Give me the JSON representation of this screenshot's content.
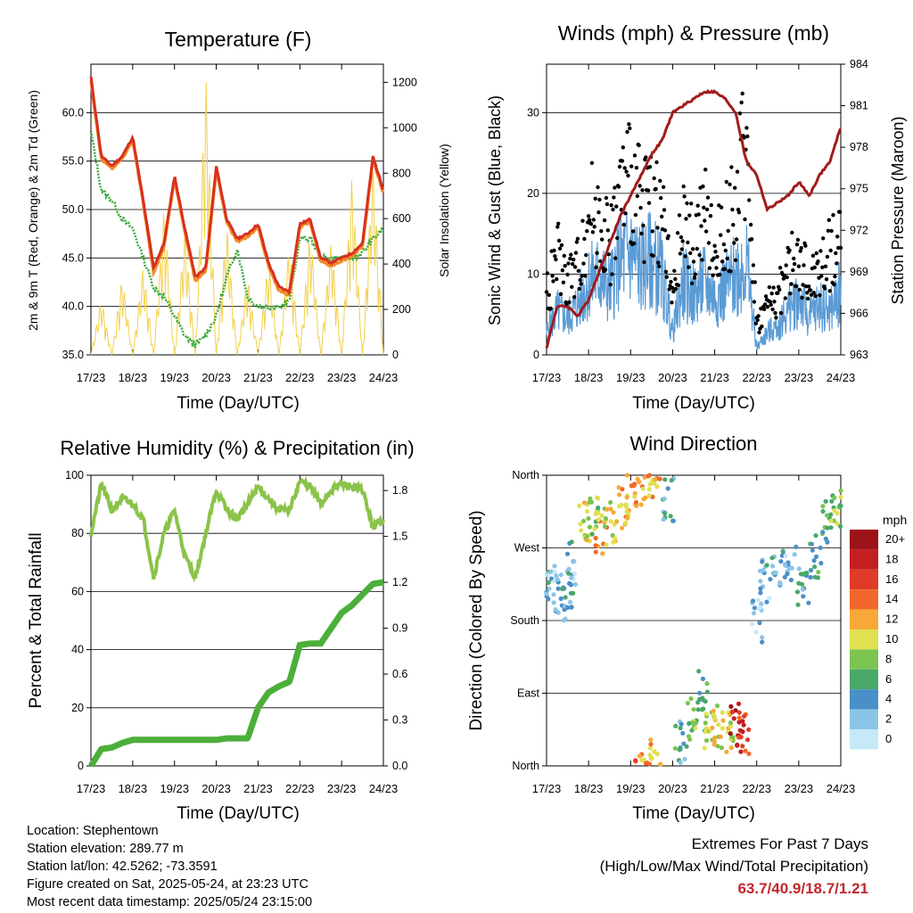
{
  "colors": {
    "t2m": "#d7301f",
    "t9m": "#f28c28",
    "td": "#3aa83a",
    "solar": "#f2d04c",
    "wind": "#5b9bd5",
    "gust": "#000000",
    "pressure": "#a01c1c",
    "rh": "#8bc34a",
    "precip": "#4caf3a",
    "extremes": "#c0282d"
  },
  "x_ticks": [
    "17/23",
    "18/23",
    "19/23",
    "20/23",
    "21/23",
    "22/23",
    "23/23",
    "24/23"
  ],
  "panels": {
    "temperature": {
      "title": "Temperature (F)",
      "xlabel": "Time (Day/UTC)",
      "ylabel_left": "2m & 9m T (Red, Orange) & 2m Td (Green)",
      "ylabel_right": "Solar Insolation (Yellow)",
      "left_ticks": [
        "35.0",
        "40.0",
        "45.0",
        "50.0",
        "55.0",
        "60.0"
      ],
      "right_ticks": [
        "0",
        "200",
        "400",
        "600",
        "800",
        "1000",
        "1200"
      ]
    },
    "winds": {
      "title": "Winds (mph) & Pressure (mb)",
      "xlabel": "Time (Day/UTC)",
      "ylabel_left": "Sonic Wind & Gust (Blue, Black)",
      "ylabel_right": "Station Pressure (Maroon)",
      "left_ticks": [
        "0",
        "10",
        "20",
        "30"
      ],
      "right_ticks": [
        "963",
        "966",
        "969",
        "972",
        "975",
        "978",
        "981",
        "984"
      ]
    },
    "humidity": {
      "title": "Relative Humidity (%) & Precipitation (in)",
      "xlabel": "Time (Day/UTC)",
      "ylabel_left": "Percent & Total Rainfall",
      "left_ticks": [
        "0",
        "20",
        "40",
        "60",
        "80",
        "100"
      ],
      "right_ticks": [
        "0.0",
        "0.3",
        "0.6",
        "0.9",
        "1.2",
        "1.5",
        "1.8"
      ]
    },
    "direction": {
      "title": "Wind Direction",
      "xlabel": "Time (Day/UTC)",
      "ylabel_left": "Direction (Colored By Speed)",
      "left_ticks": [
        "North",
        "East",
        "South",
        "West",
        "North"
      ],
      "legend_title": "mph",
      "legend_labels": [
        "0",
        "2",
        "4",
        "6",
        "8",
        "10",
        "12",
        "14",
        "16",
        "18",
        "20+"
      ],
      "legend_colors": [
        "#c6e8f7",
        "#8cc4e8",
        "#4a8fc8",
        "#4aa86a",
        "#7cc450",
        "#e0e050",
        "#f7a838",
        "#f2682a",
        "#e03a28",
        "#c41e22",
        "#9c1418"
      ]
    }
  },
  "chart_data": [
    {
      "type": "line",
      "title": "Temperature (F)",
      "xlabel": "Time (Day/UTC)",
      "ylabel": "2m & 9m T (Red, Orange) & 2m Td (Green)",
      "y2label": "Solar Insolation (Yellow)",
      "x": [
        0,
        0.25,
        0.5,
        0.75,
        1,
        1.25,
        1.5,
        1.75,
        2,
        2.25,
        2.5,
        2.75,
        3,
        3.25,
        3.5,
        3.75,
        4,
        4.25,
        4.5,
        4.75,
        5,
        5.25,
        5.5,
        5.75,
        6,
        6.25,
        6.5,
        6.75,
        7
      ],
      "ylim": [
        35,
        65
      ],
      "y2lim": [
        0,
        1280
      ],
      "series": [
        {
          "name": "2m T",
          "values": [
            63.7,
            55.5,
            54.5,
            55.5,
            57.5,
            51,
            44,
            46.5,
            53.5,
            48,
            43,
            44,
            54.5,
            49,
            47,
            47.5,
            48.5,
            44.5,
            42,
            41.5,
            48.5,
            49,
            45,
            44.5,
            45,
            45.5,
            46.5,
            55.5,
            52
          ]
        },
        {
          "name": "9m T",
          "values": [
            63.3,
            55.2,
            54.2,
            55.2,
            57.2,
            50.7,
            43.5,
            46.2,
            53.2,
            47.7,
            42.6,
            43.7,
            54.2,
            48.7,
            46.7,
            47.2,
            48.2,
            44.2,
            41.6,
            41.2,
            48.2,
            48.7,
            44.7,
            44.2,
            44.7,
            45.2,
            46.2,
            55.2,
            51.7
          ]
        },
        {
          "name": "2m Td",
          "values": [
            58,
            52,
            51,
            49,
            48,
            45,
            42,
            41,
            39,
            37,
            36,
            37,
            39,
            43,
            46,
            41,
            40,
            40,
            40,
            40.5,
            47,
            47,
            45,
            45,
            45,
            45,
            45.5,
            47,
            48
          ]
        },
        {
          "name": "Solar",
          "values": [
            0,
            250,
            0,
            350,
            0,
            400,
            0,
            650,
            0,
            560,
            0,
            1250,
            0,
            580,
            0,
            350,
            0,
            420,
            0,
            500,
            0,
            560,
            0,
            520,
            0,
            800,
            0,
            870,
            0
          ]
        }
      ]
    },
    {
      "type": "scatter",
      "title": "Winds (mph) & Pressure (mb)",
      "xlabel": "Time (Day/UTC)",
      "ylabel": "Sonic Wind & Gust (Blue, Black)",
      "y2label": "Station Pressure (Maroon)",
      "x": [
        0,
        0.25,
        0.5,
        0.75,
        1,
        1.25,
        1.5,
        1.75,
        2,
        2.25,
        2.5,
        2.75,
        3,
        3.25,
        3.5,
        3.75,
        4,
        4.25,
        4.5,
        4.75,
        5,
        5.25,
        5.5,
        5.75,
        6,
        6.25,
        6.5,
        6.75,
        7
      ],
      "ylim": [
        0,
        36
      ],
      "y2lim": [
        963,
        984
      ],
      "series": [
        {
          "name": "Wind",
          "values": [
            3,
            6,
            5,
            7,
            10,
            11,
            9,
            13,
            14,
            12,
            13,
            11,
            3,
            10,
            8,
            10,
            8,
            9,
            11,
            13,
            1,
            3,
            4,
            6,
            8,
            5,
            7,
            6,
            9
          ]
        },
        {
          "name": "Gust",
          "values": [
            8,
            14,
            10,
            12,
            20,
            19,
            15,
            22,
            24,
            20,
            22,
            19,
            7,
            18,
            15,
            19,
            14,
            17,
            20,
            30,
            4,
            7,
            8,
            12,
            13,
            10,
            12,
            14,
            16
          ]
        },
        {
          "name": "Pressure",
          "values": [
            963.5,
            966.5,
            966.5,
            965.8,
            967,
            969,
            971,
            973,
            974.5,
            976,
            977.5,
            978.5,
            980.5,
            981,
            981.5,
            982,
            982,
            981.5,
            980.5,
            977,
            976,
            973.5,
            974,
            974.5,
            975.5,
            974.5,
            976,
            977,
            979.5
          ]
        }
      ]
    },
    {
      "type": "line",
      "title": "Relative Humidity (%) & Precipitation (in)",
      "xlabel": "Time (Day/UTC)",
      "ylabel": "Percent & Total Rainfall",
      "x": [
        0,
        0.25,
        0.5,
        0.75,
        1,
        1.25,
        1.5,
        1.75,
        2,
        2.25,
        2.5,
        2.75,
        3,
        3.25,
        3.5,
        3.75,
        4,
        4.25,
        4.5,
        4.75,
        5,
        5.25,
        5.5,
        5.75,
        6,
        6.25,
        6.5,
        6.75,
        7
      ],
      "ylim": [
        0,
        100
      ],
      "y2lim": [
        0,
        1.9
      ],
      "series": [
        {
          "name": "RH",
          "values": [
            80,
            97,
            88,
            92,
            90,
            85,
            65,
            80,
            88,
            72,
            65,
            80,
            95,
            88,
            85,
            90,
            96,
            92,
            88,
            88,
            98,
            96,
            90,
            95,
            97,
            96,
            95,
            82,
            85
          ]
        },
        {
          "name": "Precip",
          "values": [
            0,
            0.11,
            0.12,
            0.15,
            0.17,
            0.17,
            0.17,
            0.17,
            0.17,
            0.17,
            0.17,
            0.17,
            0.17,
            0.18,
            0.18,
            0.18,
            0.38,
            0.48,
            0.52,
            0.55,
            0.79,
            0.8,
            0.8,
            0.9,
            1.0,
            1.05,
            1.12,
            1.19,
            1.2
          ]
        }
      ]
    },
    {
      "type": "scatter",
      "title": "Wind Direction",
      "xlabel": "Time (Day/UTC)",
      "ylabel": "Direction (Colored By Speed)",
      "ylim": [
        0,
        360
      ],
      "y_categories": [
        "North",
        "East",
        "South",
        "West",
        "North"
      ],
      "points": [
        {
          "x": 0.1,
          "dir": 230,
          "spd": 3
        },
        {
          "x": 0.3,
          "dir": 210,
          "spd": 2
        },
        {
          "x": 0.5,
          "dir": 200,
          "spd": 4
        },
        {
          "x": 0.6,
          "dir": 250,
          "spd": 3
        },
        {
          "x": 0.9,
          "dir": 300,
          "spd": 10
        },
        {
          "x": 1.1,
          "dir": 310,
          "spd": 8
        },
        {
          "x": 1.3,
          "dir": 290,
          "spd": 12
        },
        {
          "x": 1.5,
          "dir": 300,
          "spd": 10
        },
        {
          "x": 1.8,
          "dir": 320,
          "spd": 11
        },
        {
          "x": 2.0,
          "dir": 335,
          "spd": 12
        },
        {
          "x": 2.2,
          "dir": 350,
          "spd": 13
        },
        {
          "x": 2.4,
          "dir": 355,
          "spd": 12
        },
        {
          "x": 2.6,
          "dir": 5,
          "spd": 12
        },
        {
          "x": 2.9,
          "dir": 330,
          "spd": 4
        },
        {
          "x": 3.2,
          "dir": 30,
          "spd": 5
        },
        {
          "x": 3.5,
          "dir": 60,
          "spd": 8
        },
        {
          "x": 3.7,
          "dir": 90,
          "spd": 6
        },
        {
          "x": 3.9,
          "dir": 40,
          "spd": 9
        },
        {
          "x": 4.1,
          "dir": 50,
          "spd": 11
        },
        {
          "x": 4.3,
          "dir": 40,
          "spd": 10
        },
        {
          "x": 4.5,
          "dir": 50,
          "spd": 18
        },
        {
          "x": 4.7,
          "dir": 40,
          "spd": 16
        },
        {
          "x": 5.0,
          "dir": 180,
          "spd": 2
        },
        {
          "x": 5.2,
          "dir": 230,
          "spd": 3
        },
        {
          "x": 5.5,
          "dir": 240,
          "spd": 4
        },
        {
          "x": 5.8,
          "dir": 250,
          "spd": 3
        },
        {
          "x": 6.1,
          "dir": 220,
          "spd": 5
        },
        {
          "x": 6.4,
          "dir": 260,
          "spd": 6
        },
        {
          "x": 6.7,
          "dir": 300,
          "spd": 7
        },
        {
          "x": 6.9,
          "dir": 320,
          "spd": 8
        }
      ]
    }
  ],
  "info": {
    "location": "Location: Stephentown",
    "elevation": "Station elevation: 289.77 m",
    "latlon": "Station lat/lon: 42.5262; -73.3591",
    "created": "Figure created on Sat, 2025-05-24, at 23:23 UTC",
    "timestamp": "Most recent data timestamp: 2025/05/24 23:15:00"
  },
  "extremes": {
    "line1": "Extremes For Past 7 Days",
    "line2": "(High/Low/Max Wind/Total Precipitation)",
    "value": "63.7/40.9/18.7/1.21"
  }
}
